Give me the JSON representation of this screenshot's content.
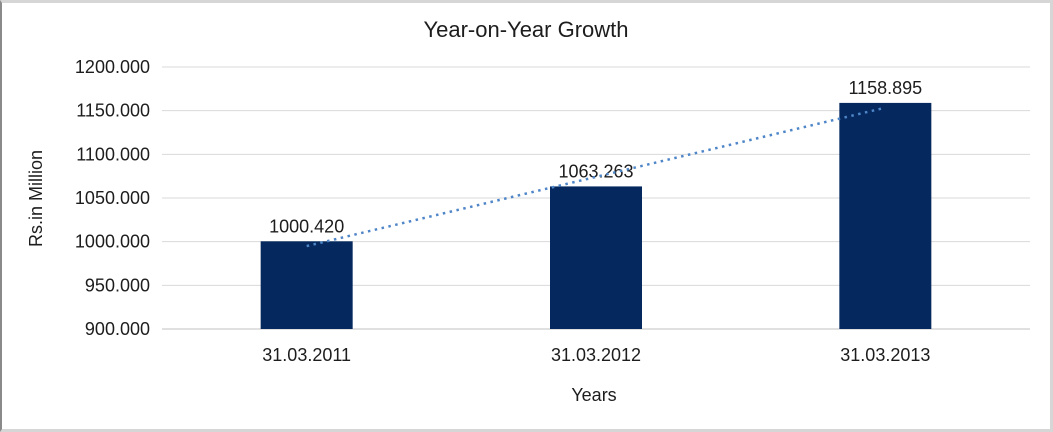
{
  "chart_data": {
    "type": "bar",
    "title": "Year-on-Year Growth",
    "xlabel": "Years",
    "ylabel": "Rs.in Million",
    "categories": [
      "31.03.2011",
      "31.03.2012",
      "31.03.2013"
    ],
    "values": [
      1000.42,
      1063.263,
      1158.895
    ],
    "data_labels": [
      "1000.420",
      "1063.263",
      "1158.895"
    ],
    "y_ticks": [
      "1200.000",
      "1150.000",
      "1100.000",
      "1050.000",
      "1000.000",
      "950.000",
      "900.000"
    ],
    "ylim": [
      900,
      1200
    ],
    "y_tick_step": 50,
    "grid": true,
    "legend": false,
    "trendline": {
      "type": "linear",
      "style": "dotted",
      "color": "#4f86c8"
    },
    "bar_color": "#05295f",
    "gridline_color": "#d9d9d9",
    "axis_line_color": "#c2c2c2",
    "text_color": "#1d1d1d"
  }
}
